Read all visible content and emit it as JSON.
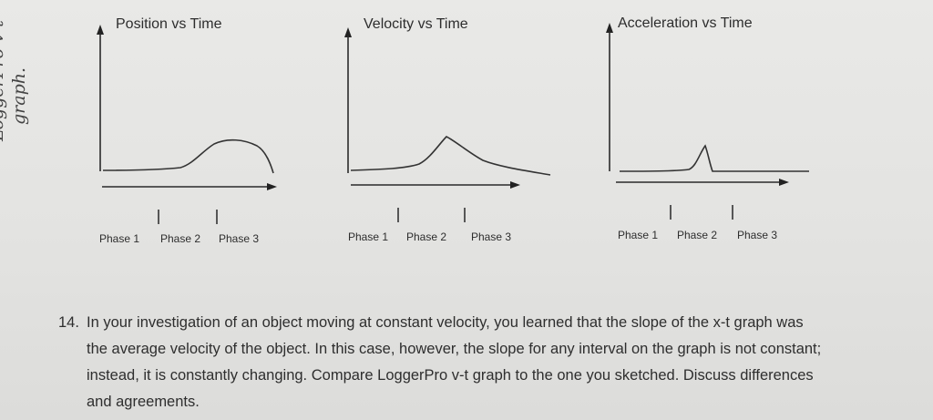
{
  "handwriting": {
    "line1": "LoggerPro v-t",
    "line2": "graph."
  },
  "charts": [
    {
      "title": "Position vs Time",
      "phases": [
        "Phase 1",
        "Phase 2",
        "Phase 3"
      ]
    },
    {
      "title": "Velocity vs Time",
      "phases": [
        "Phase 1",
        "Phase 2",
        "Phase 3"
      ]
    },
    {
      "title": "Acceleration vs Time",
      "phases": [
        "Phase 1",
        "Phase 2",
        "Phase 3"
      ]
    }
  ],
  "question": {
    "number": "14.",
    "text": "In your investigation of an object moving at constant velocity, you learned that the slope of the x-t graph was the average velocity of the object. In this case, however, the slope for any interval on the graph is not constant; instead, it is constantly changing. Compare LoggerPro v-t graph to the one you sketched. Discuss differences and agreements."
  }
}
